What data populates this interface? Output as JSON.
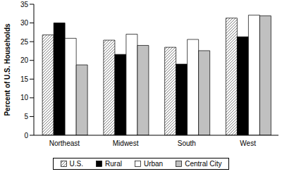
{
  "chart_data": {
    "type": "bar",
    "y_label": "Percent of U.S. Households",
    "categories": [
      "Northeast",
      "Midwest",
      "South",
      "West"
    ],
    "series": [
      {
        "name": "U.S.",
        "color": "#808080",
        "values": [
          26.8,
          25.4,
          23.5,
          31.3
        ]
      },
      {
        "name": "Rural",
        "color": "#000000",
        "values": [
          30,
          21.6,
          19,
          26.3
        ]
      },
      {
        "name": "Urban",
        "color": "#ffffff",
        "values": [
          25.9,
          27,
          25.6,
          32.1
        ]
      },
      {
        "name": "Central City",
        "color": "#c0c0c0",
        "values": [
          18.8,
          24,
          22.6,
          31.9
        ]
      }
    ],
    "ylim": [
      0,
      35
    ],
    "yticks": [
      0,
      5,
      10,
      15,
      20,
      25,
      30,
      35
    ],
    "grid": false,
    "legend": "bottom"
  }
}
